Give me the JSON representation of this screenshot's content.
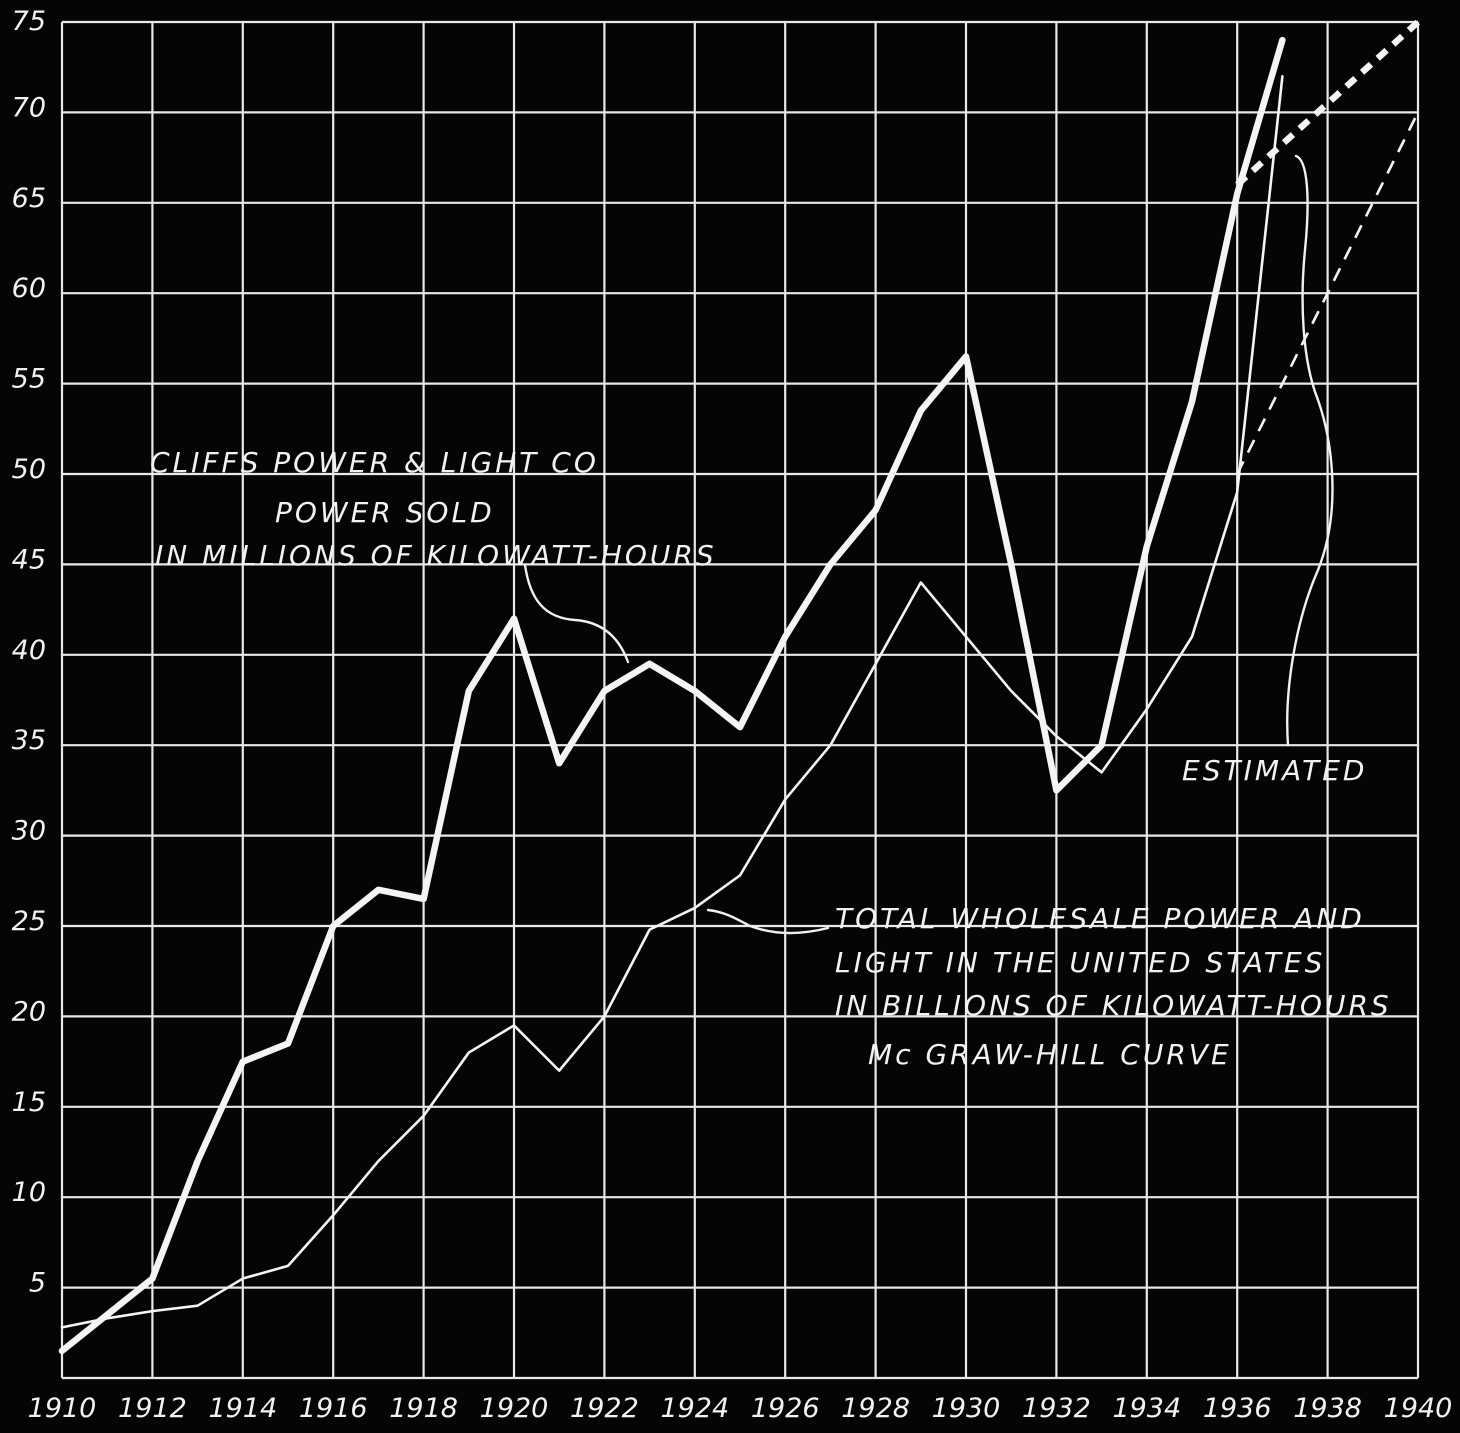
{
  "chart_data": {
    "type": "line",
    "title": "",
    "xlabel": "",
    "ylabel": "",
    "xlim": [
      1910,
      1940
    ],
    "ylim": [
      0,
      75
    ],
    "grid": true,
    "x_ticks": [
      "1910",
      "1912",
      "1914",
      "1916",
      "1918",
      "1920",
      "1922",
      "1924",
      "1926",
      "1928",
      "1930",
      "1932",
      "1934",
      "1936",
      "1938",
      "1940"
    ],
    "y_ticks": [
      "5",
      "10",
      "15",
      "20",
      "25",
      "30",
      "35",
      "40",
      "45",
      "50",
      "55",
      "60",
      "65",
      "70",
      "75"
    ],
    "series": [
      {
        "name": "CLIFFS POWER & LIGHT CO POWER SOLD IN MILLIONS OF KILOWATT-HOURS",
        "x": [
          1910,
          1912,
          1913,
          1914,
          1915,
          1916,
          1917,
          1918,
          1919,
          1920,
          1921,
          1922,
          1923,
          1924,
          1925,
          1926,
          1927,
          1928,
          1929,
          1930,
          1931,
          1932,
          1933,
          1934,
          1935,
          1936,
          1937
        ],
        "values": [
          1.5,
          5.5,
          12,
          17.5,
          18.5,
          25,
          27,
          26.5,
          38,
          42,
          34,
          38,
          39.5,
          38,
          36,
          41,
          45,
          48,
          53.5,
          56.5,
          45,
          32.5,
          35,
          46,
          54,
          65.5,
          74
        ]
      },
      {
        "name": "TOTAL WHOLESALE POWER AND LIGHT IN THE UNITED STATES IN BILLIONS OF KILOWATT-HOURS Mc GRAW-HILL CURVE",
        "x": [
          1910,
          1911,
          1912,
          1913,
          1914,
          1915,
          1916,
          1917,
          1918,
          1919,
          1920,
          1921,
          1922,
          1923,
          1924,
          1925,
          1926,
          1927,
          1928,
          1929,
          1930,
          1931,
          1932,
          1933,
          1934,
          1935,
          1936,
          1937
        ],
        "values": [
          2.8,
          3.3,
          3.7,
          4.0,
          5.5,
          6.2,
          9.0,
          12.0,
          14.5,
          18.0,
          19.5,
          17.0,
          20.0,
          24.8,
          26.0,
          27.8,
          32.0,
          35.0,
          39.5,
          44.0,
          41.0,
          38.0,
          35.5,
          33.5,
          37.0,
          41.0,
          49.0,
          72.0
        ]
      }
    ],
    "estimated": [
      {
        "series": 0,
        "x": [
          1936,
          1940
        ],
        "values": [
          66,
          75
        ]
      },
      {
        "series": 1,
        "x": [
          1936,
          1940
        ],
        "values": [
          50,
          70
        ]
      }
    ],
    "annotations": {
      "cliffs": [
        "CLIFFS POWER & LIGHT CO",
        "POWER SOLD",
        "IN MILLIONS OF KILOWATT-HOURS"
      ],
      "us": [
        "TOTAL WHOLESALE POWER AND",
        "LIGHT IN THE UNITED STATES",
        "IN BILLIONS OF KILOWATT-HOURS",
        "Mc GRAW-HILL CURVE"
      ],
      "estimated": "ESTIMATED"
    }
  }
}
